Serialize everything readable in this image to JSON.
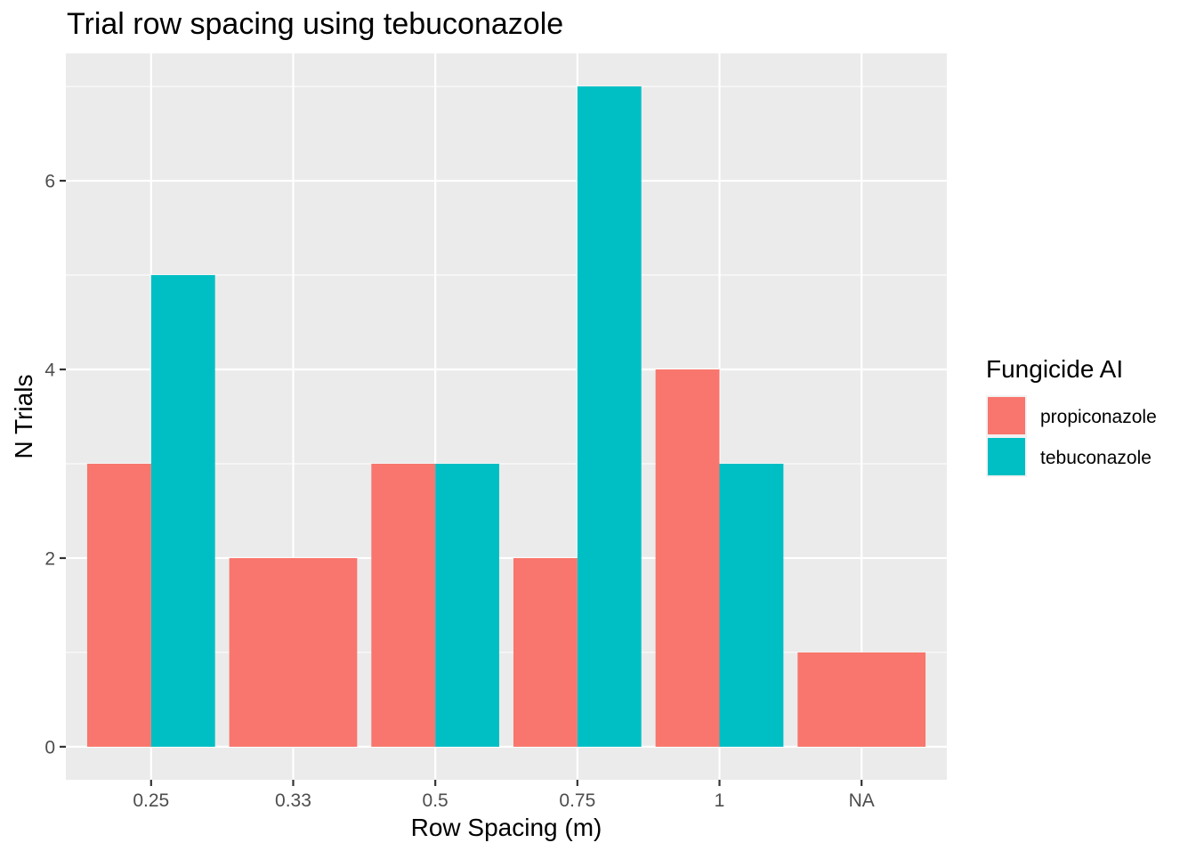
{
  "chart_data": {
    "type": "bar",
    "title": "Trial row spacing using tebuconazole",
    "xlabel": "Row Spacing (m)",
    "ylabel": "N Trials",
    "categories": [
      "0.25",
      "0.33",
      "0.5",
      "0.75",
      "1",
      "NA"
    ],
    "series": [
      {
        "name": "propiconazole",
        "color": "#F8766D",
        "values": [
          3,
          2,
          3,
          2,
          4,
          1
        ]
      },
      {
        "name": "tebuconazole",
        "color": "#00BFC4",
        "values": [
          5,
          null,
          3,
          7,
          3,
          null
        ]
      }
    ],
    "ylim": [
      -0.35,
      7.35
    ],
    "yticks": [
      "0",
      "2",
      "4",
      "6"
    ],
    "grid": true,
    "legend": {
      "title": "Fungicide AI",
      "placement": "right"
    },
    "panel_background": "#EBEBEB"
  }
}
